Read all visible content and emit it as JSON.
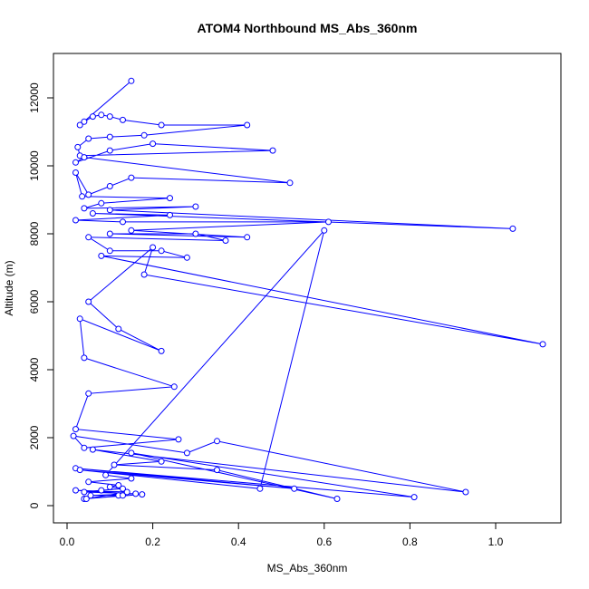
{
  "chart_data": {
    "type": "line",
    "title": "ATOM4 Northbound MS_Abs_360nm",
    "xlabel": "MS_Abs_360nm",
    "ylabel": "Altitude (m)",
    "xlim": [
      0,
      1.15
    ],
    "ylim": [
      0,
      12500
    ],
    "x_ticks": [
      "0.0",
      "0.2",
      "0.4",
      "0.6",
      "0.8",
      "1.0"
    ],
    "y_ticks": [
      "0",
      "2000",
      "4000",
      "6000",
      "8000",
      "10000",
      "12000"
    ],
    "grid": false,
    "legend": "none",
    "markers": "open-circle",
    "series": [
      {
        "color": "#0000ff",
        "points": [
          [
            0.15,
            12500
          ],
          [
            0.03,
            11200
          ],
          [
            0.04,
            11300
          ],
          [
            0.06,
            11450
          ],
          [
            0.08,
            11500
          ],
          [
            0.1,
            11450
          ],
          [
            0.13,
            11350
          ],
          [
            0.22,
            11200
          ],
          [
            0.42,
            11200
          ],
          [
            0.18,
            10900
          ],
          [
            0.1,
            10850
          ],
          [
            0.05,
            10800
          ],
          [
            0.025,
            10550
          ],
          [
            0.03,
            10300
          ],
          [
            0.48,
            10450
          ],
          [
            0.2,
            10650
          ],
          [
            0.1,
            10450
          ],
          [
            0.02,
            10100
          ],
          [
            0.04,
            10250
          ],
          [
            0.52,
            9500
          ],
          [
            0.15,
            9650
          ],
          [
            0.1,
            9400
          ],
          [
            0.05,
            9150
          ],
          [
            0.02,
            9800
          ],
          [
            0.035,
            9100
          ],
          [
            0.24,
            9050
          ],
          [
            0.08,
            8900
          ],
          [
            0.04,
            8750
          ],
          [
            0.3,
            8800
          ],
          [
            0.1,
            8700
          ],
          [
            1.04,
            8150
          ],
          [
            0.06,
            8600
          ],
          [
            0.24,
            8550
          ],
          [
            0.02,
            8400
          ],
          [
            0.13,
            8350
          ],
          [
            0.61,
            8350
          ],
          [
            0.15,
            8100
          ],
          [
            0.42,
            7900
          ],
          [
            0.1,
            8000
          ],
          [
            0.3,
            8000
          ],
          [
            0.37,
            7800
          ],
          [
            0.05,
            7900
          ],
          [
            0.1,
            7500
          ],
          [
            0.22,
            7500
          ],
          [
            0.28,
            7300
          ],
          [
            0.08,
            7350
          ],
          [
            1.11,
            4750
          ],
          [
            0.18,
            6800
          ],
          [
            0.2,
            7600
          ],
          [
            0.05,
            6000
          ],
          [
            0.12,
            5200
          ],
          [
            0.22,
            4550
          ],
          [
            0.03,
            5500
          ],
          [
            0.04,
            4350
          ],
          [
            0.25,
            3500
          ],
          [
            0.05,
            3300
          ],
          [
            0.02,
            2250
          ],
          [
            0.26,
            1950
          ],
          [
            0.04,
            1700
          ],
          [
            0.015,
            2050
          ],
          [
            0.28,
            1550
          ],
          [
            0.35,
            1900
          ],
          [
            0.93,
            400
          ],
          [
            0.06,
            1650
          ],
          [
            0.22,
            1300
          ],
          [
            0.11,
            1200
          ],
          [
            0.35,
            1050
          ],
          [
            0.63,
            200
          ],
          [
            0.15,
            1550
          ],
          [
            0.81,
            250
          ],
          [
            0.02,
            1100
          ],
          [
            0.53,
            500
          ],
          [
            0.03,
            1050
          ],
          [
            0.45,
            500
          ],
          [
            0.6,
            8100
          ],
          [
            0.09,
            900
          ],
          [
            0.15,
            800
          ],
          [
            0.05,
            700
          ],
          [
            0.12,
            600
          ],
          [
            0.1,
            550
          ],
          [
            0.13,
            500
          ],
          [
            0.08,
            450
          ],
          [
            0.04,
            400
          ],
          [
            0.16,
            350
          ],
          [
            0.055,
            300
          ],
          [
            0.12,
            300
          ],
          [
            0.13,
            300
          ],
          [
            0.04,
            200
          ],
          [
            0.175,
            330
          ],
          [
            0.02,
            450
          ],
          [
            0.14,
            400
          ],
          [
            0.045,
            200
          ]
        ]
      }
    ]
  }
}
